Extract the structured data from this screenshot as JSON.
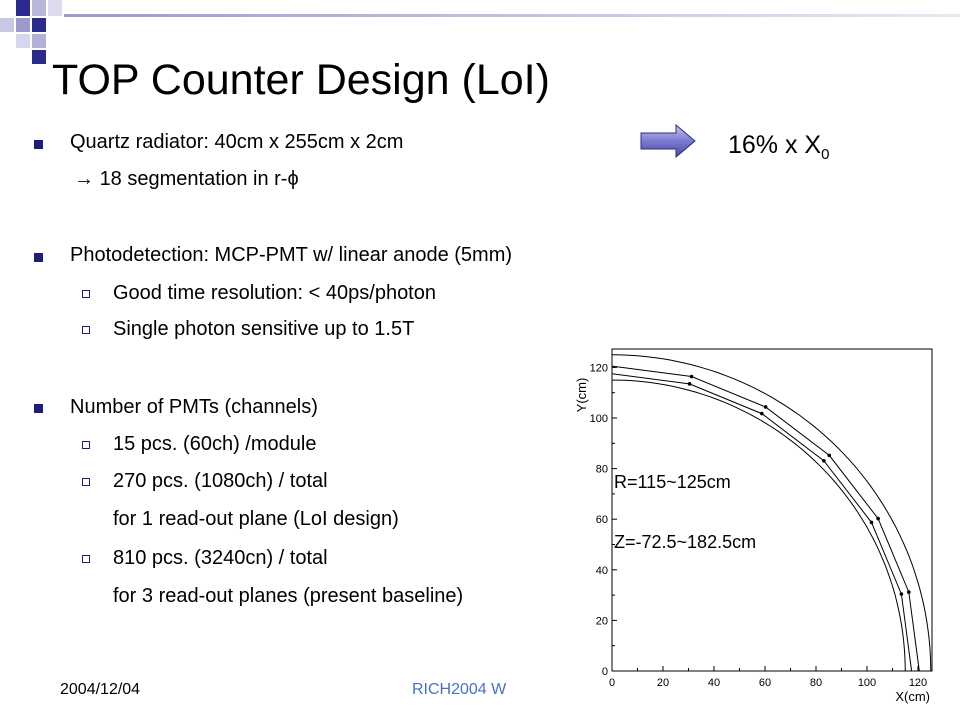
{
  "title": "TOP Counter Design (LoI)",
  "bullets": {
    "quartz": "Quartz radiator: 40cm x 255cm x 2cm",
    "quartz_sub_arrow": "→",
    "quartz_sub": "18 segmentation in r-",
    "quartz_sub_symbol": "ϕ",
    "photo": "Photodetection: MCP-PMT w/ linear anode (5mm)",
    "photo_sub1": "Good time resolution: < 40ps/photon",
    "photo_sub2": "Single photon sensitive up to 1.5T",
    "number": "Number of PMTs (channels)",
    "number_sub1": "15 pcs. (60ch) /module",
    "number_sub2": "270 pcs. (1080ch) / total",
    "number_sub2_cont": "for 1 read-out plane (LoI design)",
    "number_sub3": "810 pcs. (3240cn) / total",
    "number_sub3_cont": "for 3 read-out planes (present baseline)"
  },
  "radiation": {
    "text": "16% x X",
    "subscript": "0"
  },
  "footer": {
    "date": "2004/12/04",
    "conference": "RICH2004 W"
  },
  "plot": {
    "r_label": "R=115~125cm",
    "z_label": "Z=-72.5~182.5cm",
    "xlabel": "X(cm)",
    "ylabel": "Y(cm)",
    "xticks": [
      "0",
      "20",
      "40",
      "60",
      "80",
      "100",
      "120"
    ],
    "yticks": [
      "0",
      "20",
      "40",
      "60",
      "80",
      "100",
      "120"
    ]
  },
  "colors": {
    "accent": "#1f1f7a",
    "footer_link": "#4a6fd0",
    "deco_blue": "#2b2b8f"
  }
}
